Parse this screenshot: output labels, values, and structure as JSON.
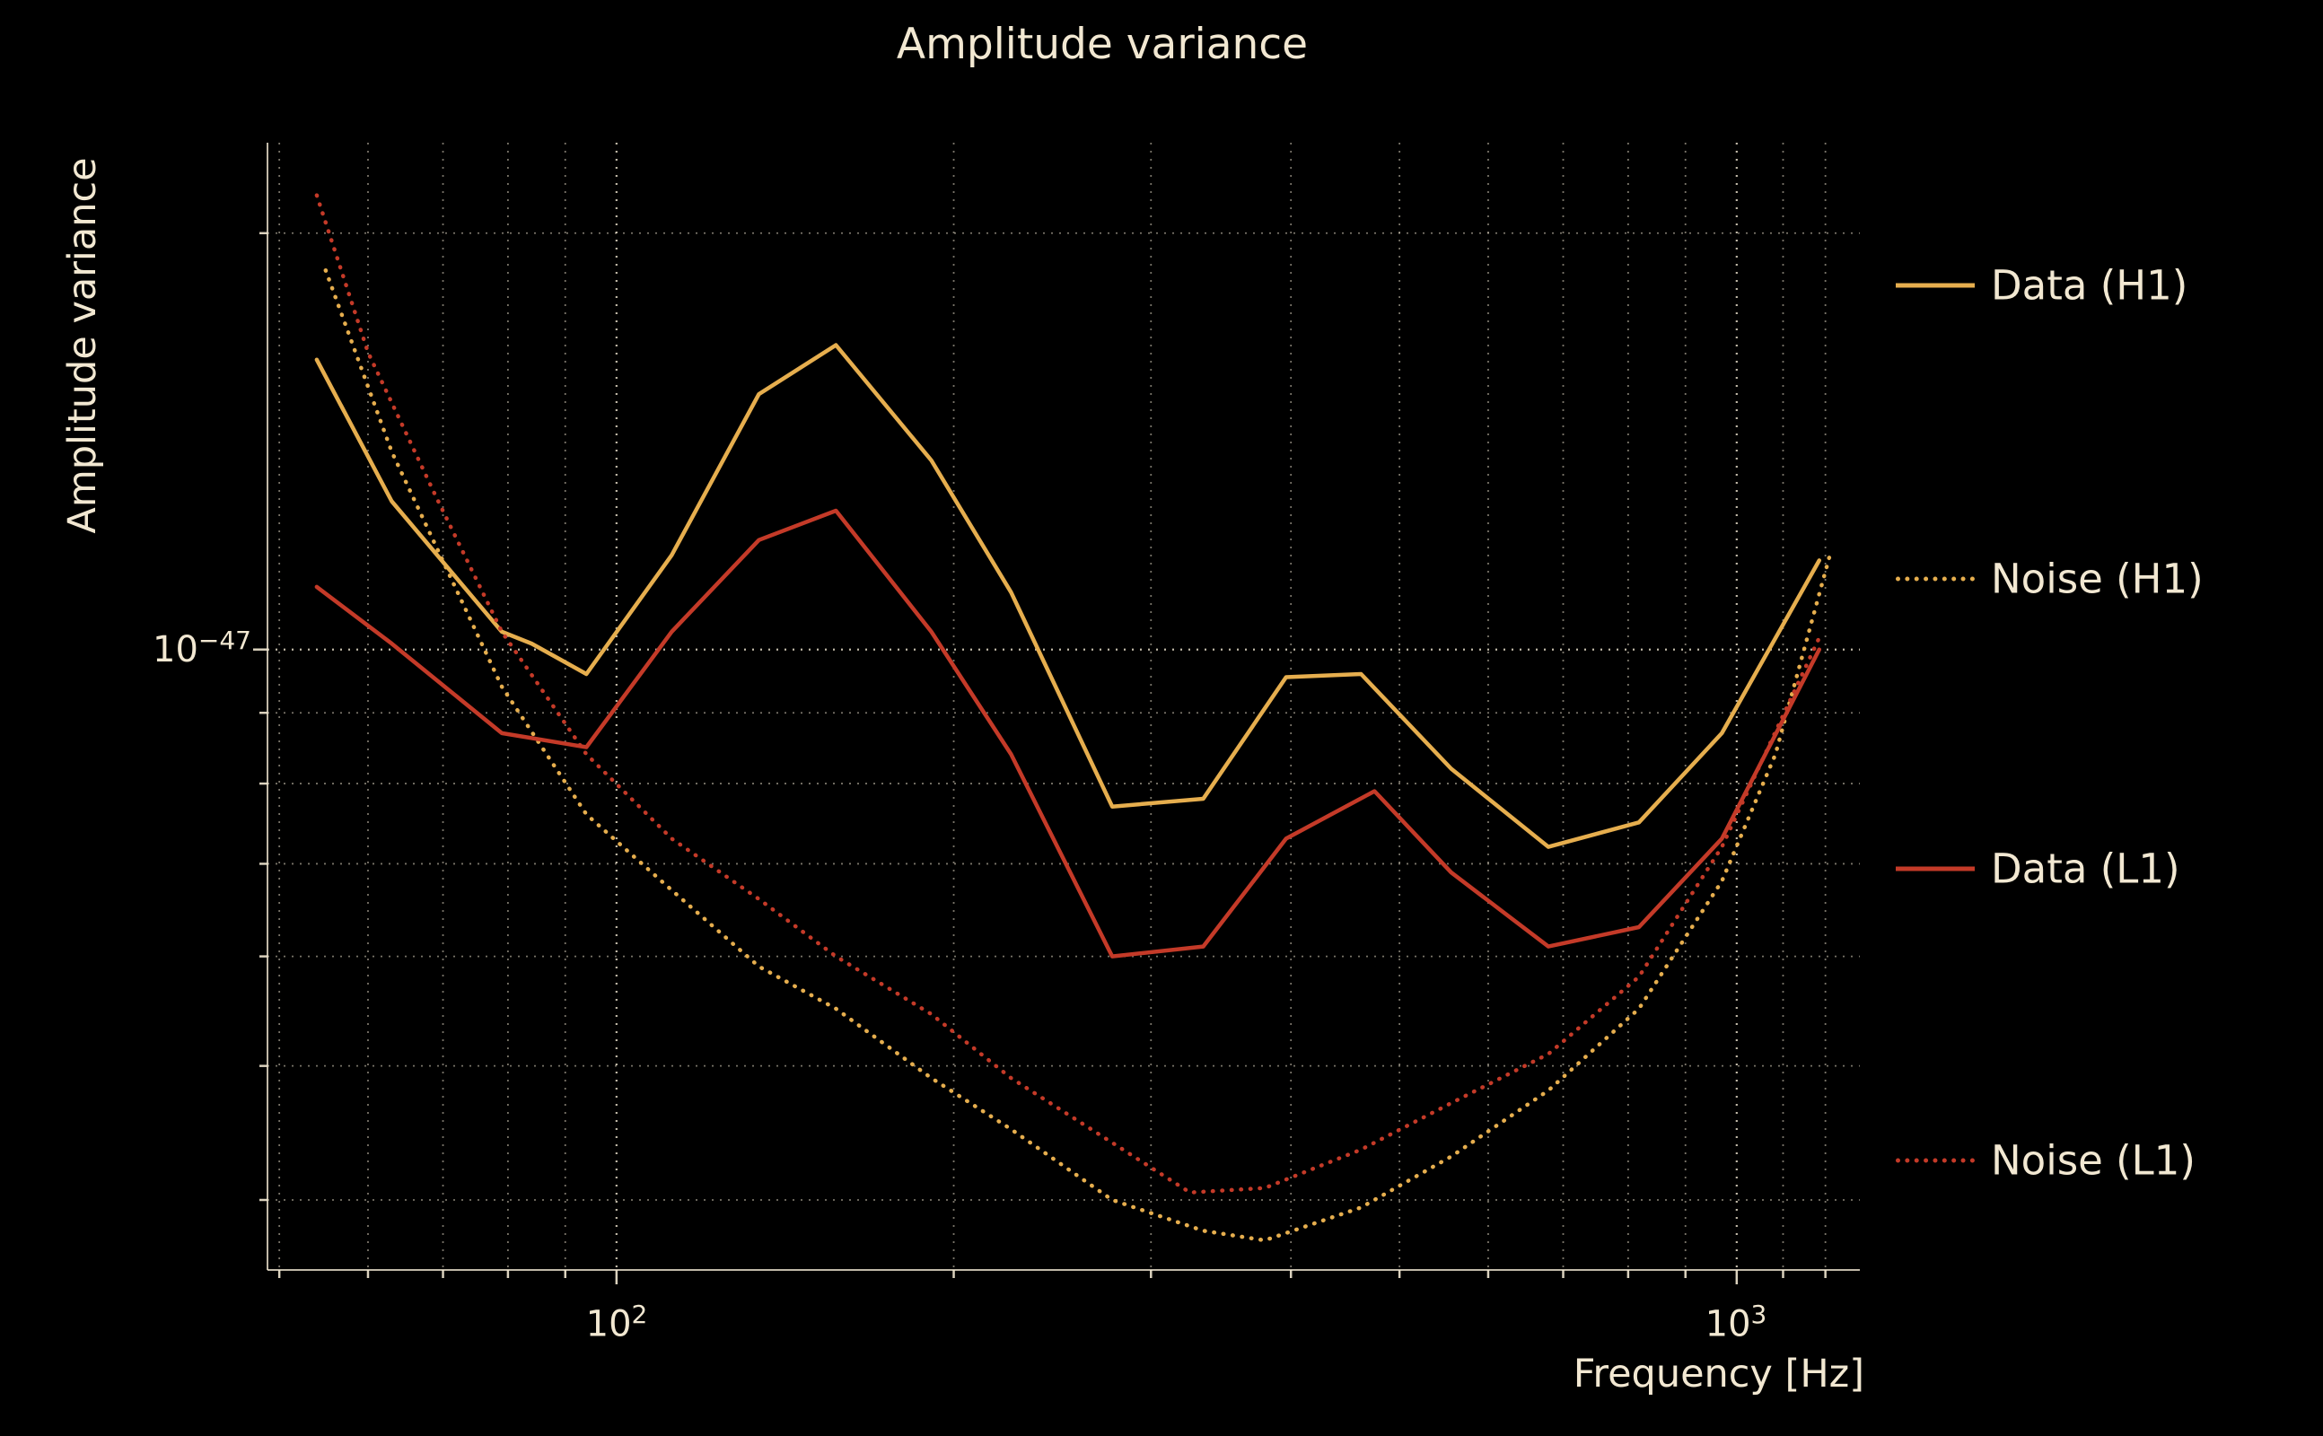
{
  "colors": {
    "background": "#000000",
    "text": "#f2e8d2",
    "grid": "#f2e8d2",
    "h1": "#e6ae4e",
    "l1": "#c43a28"
  },
  "chart_data": {
    "type": "line",
    "title": "Amplitude variance",
    "xlabel": "Frequency [Hz]",
    "ylabel": "Amplitude variance",
    "xscale": "log",
    "yscale": "log",
    "xlim": [
      48.8,
      1288
    ],
    "ylim": [
      3.56e-48,
      2.325e-47
    ],
    "grid": "both, dotted",
    "legend_position": "right, outside",
    "x_gridlines": [
      50,
      60,
      70,
      80,
      90,
      100,
      200,
      300,
      400,
      500,
      600,
      700,
      800,
      900,
      1000,
      1100,
      1200
    ],
    "x_major": [
      100,
      1000
    ],
    "y_gridlines": [
      4e-48,
      5e-48,
      6e-48,
      7e-48,
      8e-48,
      9e-48,
      1e-47,
      2e-47
    ],
    "y_major": [
      1e-47
    ],
    "axes": {
      "x_tick_labels": [
        {
          "base": "10",
          "exp": "2"
        },
        {
          "base": "10",
          "exp": "3"
        }
      ],
      "y_tick_labels": [
        {
          "base": "10",
          "exp": "−47"
        }
      ]
    },
    "series": [
      {
        "name": "Data (H1)",
        "color": "#e6ae4e",
        "style": "solid",
        "x": [
          54,
          63,
          79,
          84,
          94,
          112,
          134,
          157,
          191,
          225,
          277,
          334,
          396,
          462,
          556,
          679,
          818,
          970,
          1185
        ],
        "y": [
          1.62e-47,
          1.28e-47,
          1.03e-47,
          1.01e-47,
          9.6e-48,
          1.17e-47,
          1.53e-47,
          1.66e-47,
          1.37e-47,
          1.1e-47,
          7.7e-48,
          7.8e-48,
          9.55e-48,
          9.6e-48,
          8.2e-48,
          7.2e-48,
          7.5e-48,
          8.7e-48,
          1.16e-47
        ]
      },
      {
        "name": "Noise (H1)",
        "color": "#e6ae4e",
        "style": "dotted",
        "x": [
          55,
          63,
          79,
          94,
          112,
          134,
          157,
          191,
          225,
          277,
          334,
          379,
          462,
          556,
          679,
          818,
          970,
          1083,
          1211
        ],
        "y": [
          1.88e-47,
          1.39e-47,
          9.4e-48,
          7.6e-48,
          6.7e-48,
          5.9e-48,
          5.5e-48,
          4.9e-48,
          4.5e-48,
          4e-48,
          3.8e-48,
          3.74e-48,
          3.95e-48,
          4.3e-48,
          4.8e-48,
          5.5e-48,
          6.8e-48,
          8.4e-48,
          1.17e-47
        ]
      },
      {
        "name": "Data (L1)",
        "color": "#c43a28",
        "style": "solid",
        "x": [
          54,
          63,
          79,
          94,
          112,
          134,
          157,
          191,
          225,
          277,
          334,
          396,
          475,
          556,
          679,
          818,
          970,
          1185
        ],
        "y": [
          1.11e-47,
          1.01e-47,
          8.7e-48,
          8.5e-48,
          1.03e-47,
          1.2e-47,
          1.26e-47,
          1.03e-47,
          8.4e-48,
          6e-48,
          6.1e-48,
          7.3e-48,
          7.9e-48,
          6.9e-48,
          6.1e-48,
          6.3e-48,
          7.3e-48,
          1e-47
        ]
      },
      {
        "name": "Noise (L1)",
        "color": "#c43a28",
        "style": "dotted",
        "x": [
          54,
          60,
          69,
          79,
          94,
          112,
          134,
          157,
          191,
          225,
          277,
          325,
          379,
          462,
          556,
          679,
          818,
          970,
          1185
        ],
        "y": [
          2.13e-47,
          1.64e-47,
          1.29e-47,
          1.03e-47,
          8.4e-48,
          7.3e-48,
          6.6e-48,
          6e-48,
          5.45e-48,
          4.9e-48,
          4.4e-48,
          4.05e-48,
          4.08e-48,
          4.35e-48,
          4.7e-48,
          5.1e-48,
          5.8e-48,
          7.2e-48,
          1.02e-47
        ]
      }
    ]
  }
}
